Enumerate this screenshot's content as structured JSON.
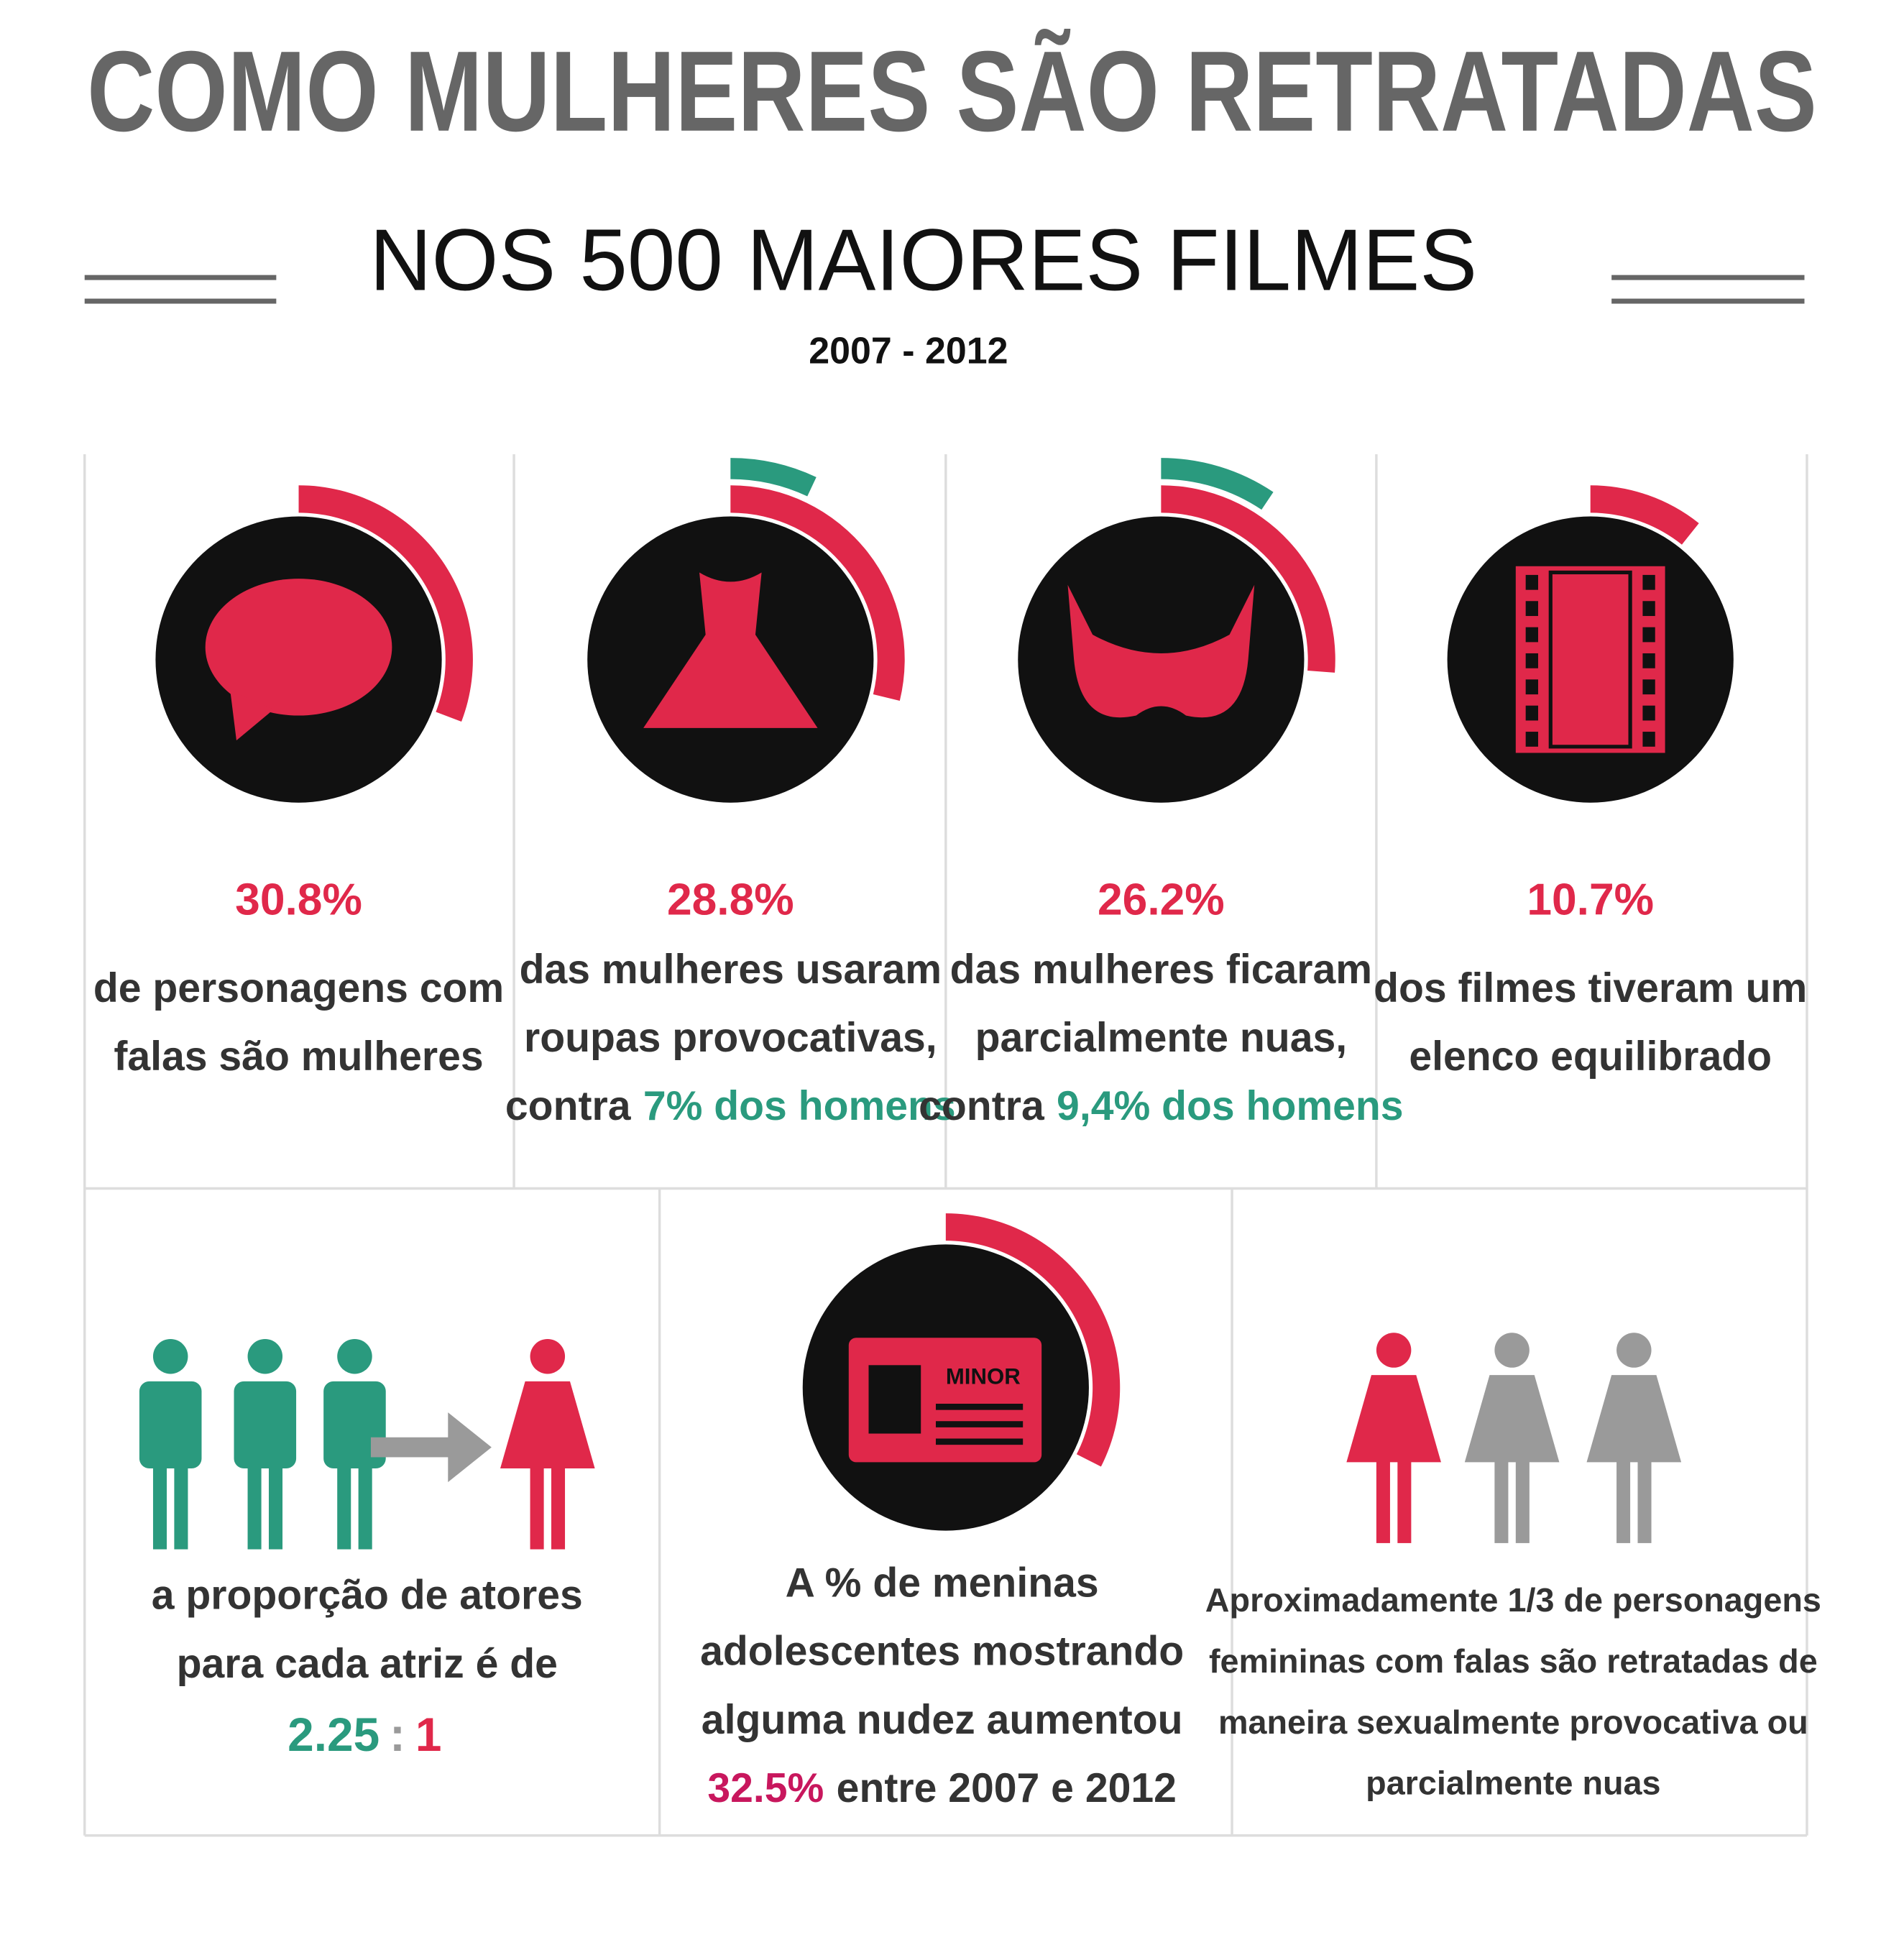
{
  "header": {
    "title": "COMO MULHERES SÃO RETRATADAS",
    "subtitle": "NOS 500 MAIORES FILMES",
    "years": "2007 - 2012"
  },
  "stats": [
    {
      "value": "30.8%",
      "lines": [
        "de personagens com",
        "falas são mulheres"
      ]
    },
    {
      "value": "28.8%",
      "lines": [
        "das mulheres usaram",
        "roupas provocativas,"
      ],
      "contrast": {
        "prefix": "contra",
        "highlight": "7% dos homens"
      }
    },
    {
      "value": "26.2%",
      "lines": [
        "das mulheres ficaram",
        "parcialmente nuas,"
      ],
      "contrast": {
        "prefix": "contra",
        "highlight": "9,4% dos homens"
      }
    },
    {
      "value": "10.7%",
      "lines": [
        "dos filmes tiveram um",
        "elenco equilibrado"
      ]
    }
  ],
  "bottom": [
    {
      "lines": [
        "a proporção de atores",
        "para cada atriz é de"
      ],
      "ratio": {
        "left": "2.25",
        "sep": ":",
        "right": "1"
      }
    },
    {
      "icon_label": "MINOR",
      "lines": [
        "A % de meninas",
        "adolescentes mostrando",
        "alguma nudez aumentou"
      ],
      "highlight": "32.5%",
      "suffix": "entre 2007 e 2012"
    },
    {
      "lines": [
        "Aproximadamente 1/3 de personagens",
        "femininas com falas são retratadas de",
        "maneira sexualmente provocativa ou",
        "parcialmente nuas"
      ]
    }
  ]
}
